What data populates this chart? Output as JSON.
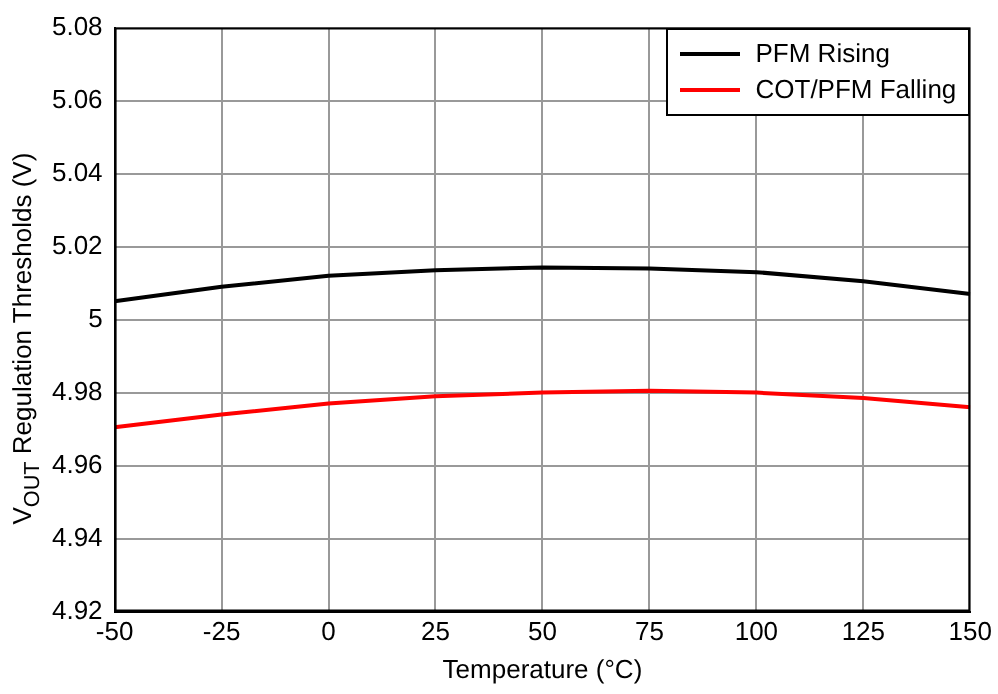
{
  "chart_data": {
    "type": "line",
    "xlabel": "Temperature (°C)",
    "ylabel": "V$_{OUT}$ Regulation Thresholds (V)",
    "x": [
      -50,
      -25,
      0,
      25,
      50,
      75,
      100,
      125,
      150
    ],
    "series": [
      {
        "name": "PFM Rising",
        "color": "#000000",
        "values": [
          5.005,
          5.009,
          5.012,
          5.0135,
          5.0143,
          5.014,
          5.013,
          5.0105,
          5.007
        ]
      },
      {
        "name": "COT/PFM Falling",
        "color": "#ff0000",
        "values": [
          4.9705,
          4.974,
          4.977,
          4.979,
          4.98,
          4.9805,
          4.98,
          4.9785,
          4.976
        ]
      }
    ],
    "xlim": [
      -50,
      150
    ],
    "xticks": [
      -50,
      -25,
      0,
      25,
      50,
      75,
      100,
      125,
      150
    ],
    "ylim": [
      4.92,
      5.08
    ],
    "yticks": [
      4.92,
      4.94,
      4.96,
      4.98,
      5,
      5.02,
      5.04,
      5.06,
      5.08
    ],
    "grid": true,
    "legend": "top right",
    "marker": "none",
    "line_style": "solid"
  }
}
